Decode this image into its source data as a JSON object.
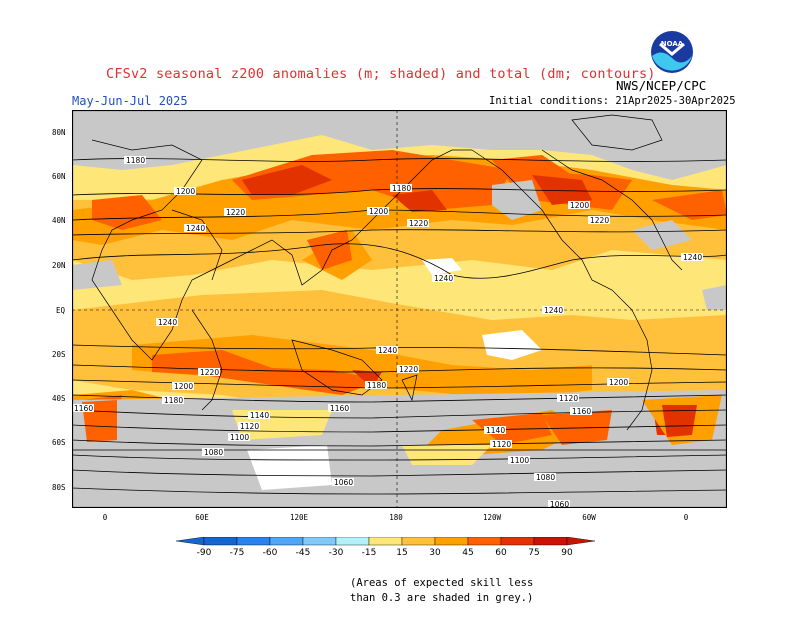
{
  "title": "CFSv2 seasonal z200 anomalies (m; shaded) and total (dm; contours)",
  "season": "May-Jun-Jul 2025",
  "initial_conditions": "Initial conditions: 21Apr2025-30Apr2025",
  "agency": "NWS/NCEP/CPC",
  "logo_text": "NOAA",
  "lat_labels": [
    "80N",
    "60N",
    "40N",
    "20N",
    "EQ",
    "20S",
    "40S",
    "60S",
    "80S"
  ],
  "lon_labels": [
    "0",
    "60E",
    "120E",
    "180",
    "120W",
    "60W",
    "0"
  ],
  "contour_labels": [
    "1180",
    "1200",
    "1220",
    "1240",
    "1240",
    "1240",
    "1240",
    "1200",
    "1220",
    "1180",
    "1200",
    "1220",
    "1240",
    "1240",
    "1220",
    "1220",
    "1200",
    "1180",
    "1160",
    "1140",
    "1120",
    "1100",
    "1080",
    "1060",
    "1200",
    "1180",
    "1160",
    "1120",
    "1160",
    "1140",
    "1120",
    "1100",
    "1080",
    "1060"
  ],
  "legend": {
    "values": [
      "-90",
      "-75",
      "-60",
      "-45",
      "-30",
      "-15",
      "15",
      "30",
      "45",
      "60",
      "75",
      "90"
    ],
    "colors": [
      "#1464d2",
      "#2882f0",
      "#50a5f5",
      "#82c8fa",
      "#b4f0fa",
      "#ffffff",
      "#ffe678",
      "#ffc03c",
      "#ffa000",
      "#ff6000",
      "#e13200",
      "#c81400"
    ]
  },
  "note": [
    "(Areas of expected skill less",
    "than 0.3 are shaded in grey.)"
  ]
}
